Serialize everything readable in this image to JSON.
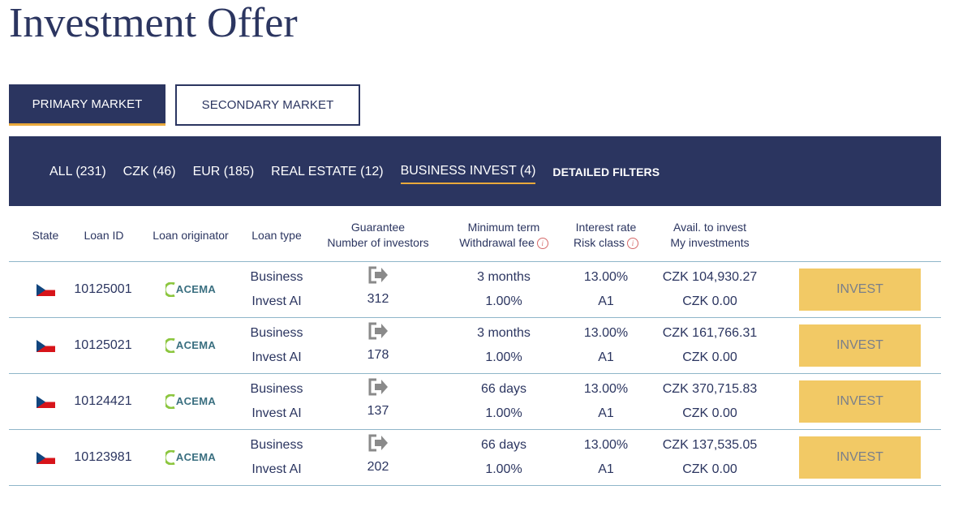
{
  "page": {
    "title": "Investment Offer"
  },
  "market_tabs": [
    {
      "label": "PRIMARY MARKET",
      "active": true
    },
    {
      "label": "SECONDARY MARKET",
      "active": false
    }
  ],
  "filters": [
    {
      "label": "ALL (231)",
      "active": false
    },
    {
      "label": "CZK (46)",
      "active": false
    },
    {
      "label": "EUR (185)",
      "active": false
    },
    {
      "label": "REAL ESTATE (12)",
      "active": false
    },
    {
      "label": "BUSINESS INVEST (4)",
      "active": true
    }
  ],
  "detailed_filters_label": "DETAILED FILTERS",
  "columns": {
    "state": "State",
    "loan_id": "Loan ID",
    "originator": "Loan originator",
    "loan_type": "Loan type",
    "guarantee": "Guarantee",
    "investors": "Number of investors",
    "min_term": "Minimum term",
    "withdrawal_fee": "Withdrawal fee",
    "interest_rate": "Interest rate",
    "risk_class": "Risk class",
    "avail": "Avail. to invest",
    "my_investments": "My investments"
  },
  "loans": [
    {
      "loan_id": "10125001",
      "originator": "ACEMA",
      "type_line1": "Business",
      "type_line2": "Invest AI",
      "investors": "312",
      "term": "3 months",
      "fee": "1.00%",
      "rate": "13.00%",
      "risk": "A1",
      "avail": "CZK 104,930.27",
      "mine": "CZK 0.00",
      "button": "INVEST"
    },
    {
      "loan_id": "10125021",
      "originator": "ACEMA",
      "type_line1": "Business",
      "type_line2": "Invest AI",
      "investors": "178",
      "term": "3 months",
      "fee": "1.00%",
      "rate": "13.00%",
      "risk": "A1",
      "avail": "CZK 161,766.31",
      "mine": "CZK 0.00",
      "button": "INVEST"
    },
    {
      "loan_id": "10124421",
      "originator": "ACEMA",
      "type_line1": "Business",
      "type_line2": "Invest AI",
      "investors": "137",
      "term": "66 days",
      "fee": "1.00%",
      "rate": "13.00%",
      "risk": "A1",
      "avail": "CZK 370,715.83",
      "mine": "CZK 0.00",
      "button": "INVEST"
    },
    {
      "loan_id": "10123981",
      "originator": "ACEMA",
      "type_line1": "Business",
      "type_line2": "Invest AI",
      "investors": "202",
      "term": "66 days",
      "fee": "1.00%",
      "rate": "13.00%",
      "risk": "A1",
      "avail": "CZK 137,535.05",
      "mine": "CZK 0.00",
      "button": "INVEST"
    }
  ],
  "icons": {
    "state_flag": "czech-flag-icon",
    "guarantee": "guarantee-arrow-icon",
    "info": "info-icon"
  },
  "colors": {
    "navy": "#2b3560",
    "accent": "#e9a93b",
    "invest_button": "#f2c965",
    "divider": "#8fb6c9"
  }
}
